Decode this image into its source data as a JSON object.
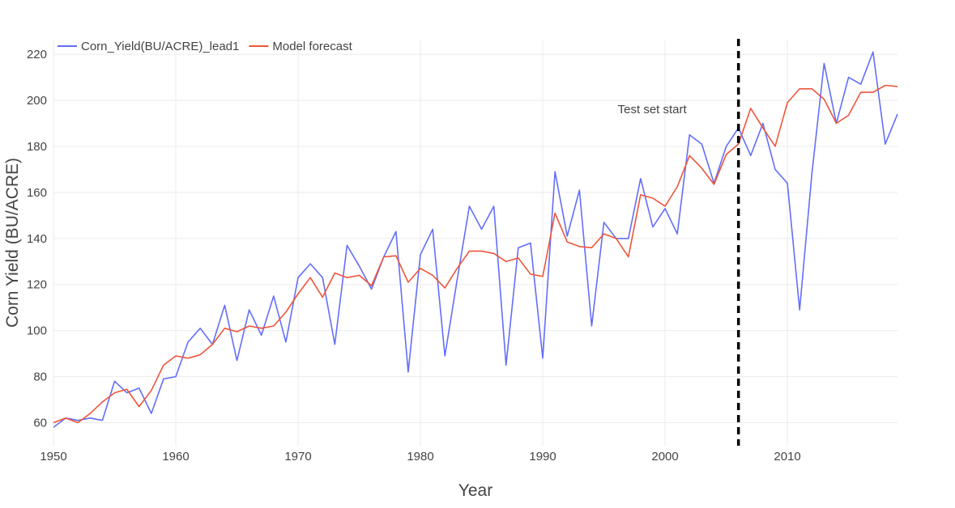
{
  "chart_data": {
    "type": "line",
    "title": "",
    "xlabel": "Year",
    "ylabel": "Corn Yield (BU/ACRE)",
    "xlim": [
      1950,
      2019
    ],
    "ylim": [
      50,
      226
    ],
    "x_ticks": [
      1950,
      1960,
      1970,
      1980,
      1990,
      2000,
      2010
    ],
    "y_ticks": [
      60,
      80,
      100,
      120,
      140,
      160,
      180,
      200,
      220
    ],
    "grid": true,
    "legend_position": "top-left",
    "x": [
      1950,
      1951,
      1952,
      1953,
      1954,
      1955,
      1956,
      1957,
      1958,
      1959,
      1960,
      1961,
      1962,
      1963,
      1964,
      1965,
      1966,
      1967,
      1968,
      1969,
      1970,
      1971,
      1972,
      1973,
      1974,
      1975,
      1976,
      1977,
      1978,
      1979,
      1980,
      1981,
      1982,
      1983,
      1984,
      1985,
      1986,
      1987,
      1988,
      1989,
      1990,
      1991,
      1992,
      1993,
      1994,
      1995,
      1996,
      1997,
      1998,
      1999,
      2000,
      2001,
      2002,
      2003,
      2004,
      2005,
      2006,
      2007,
      2008,
      2009,
      2010,
      2011,
      2012,
      2013,
      2014,
      2015,
      2016,
      2017,
      2018,
      2019
    ],
    "series": [
      {
        "name": "Corn_Yield(BU/ACRE)_lead1",
        "color": "#636efa",
        "values": [
          58,
          62,
          61,
          62,
          61,
          78,
          73,
          75,
          64,
          79,
          80,
          95,
          101,
          94,
          111,
          87,
          109,
          98,
          115,
          95,
          123,
          129,
          123,
          94,
          137,
          128,
          118,
          132,
          143,
          82,
          133,
          144,
          89,
          122,
          154,
          144,
          154,
          85,
          136,
          138,
          88,
          169,
          141,
          161,
          102,
          147,
          140,
          140,
          166,
          145,
          153,
          142,
          185,
          181,
          164,
          180,
          188,
          176,
          190,
          170,
          164,
          109,
          168,
          216,
          190,
          210,
          207,
          221,
          181,
          194
        ]
      },
      {
        "name": "Model forecast",
        "color": "#ef553b",
        "values": [
          60,
          62,
          60,
          64,
          69,
          73,
          74.5,
          67,
          74,
          85,
          89,
          88,
          89.5,
          94,
          101,
          99.5,
          102,
          101,
          102,
          108,
          116,
          123,
          114.5,
          125,
          123,
          124,
          119.5,
          132,
          132.5,
          121,
          127,
          124,
          118.5,
          127,
          134.5,
          134.5,
          133.5,
          130,
          131.5,
          124.5,
          123.5,
          151,
          138.5,
          136.5,
          136,
          142,
          140,
          132,
          159,
          157.5,
          154,
          162.5,
          176,
          170.5,
          163.5,
          176.5,
          181,
          196.5,
          188,
          180,
          199,
          205,
          205,
          200.5,
          190,
          193.5,
          203.5,
          203.5,
          206.5,
          206
        ]
      }
    ],
    "annotations": [
      {
        "text": "Test set start",
        "x": 2006,
        "y": 188
      }
    ],
    "vertical_lines": [
      {
        "x": 2006,
        "style": "dashed",
        "color": "#000000"
      }
    ]
  }
}
